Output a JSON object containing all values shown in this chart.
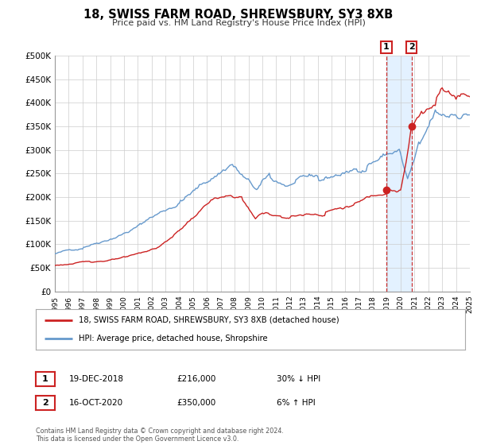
{
  "title": "18, SWISS FARM ROAD, SHREWSBURY, SY3 8XB",
  "subtitle": "Price paid vs. HM Land Registry's House Price Index (HPI)",
  "red_label": "18, SWISS FARM ROAD, SHREWSBURY, SY3 8XB (detached house)",
  "blue_label": "HPI: Average price, detached house, Shropshire",
  "marker1_date": 2018.96,
  "marker1_value": 216000,
  "marker1_label": "1",
  "marker1_text": "19-DEC-2018",
  "marker1_price": "£216,000",
  "marker1_hpi": "30% ↓ HPI",
  "marker2_date": 2020.79,
  "marker2_value": 350000,
  "marker2_label": "2",
  "marker2_text": "16-OCT-2020",
  "marker2_price": "£350,000",
  "marker2_hpi": "6% ↑ HPI",
  "copyright": "Contains HM Land Registry data © Crown copyright and database right 2024.\nThis data is licensed under the Open Government Licence v3.0.",
  "xlim": [
    1995,
    2025
  ],
  "ylim": [
    0,
    500000
  ],
  "yticks": [
    0,
    50000,
    100000,
    150000,
    200000,
    250000,
    300000,
    350000,
    400000,
    450000,
    500000
  ],
  "ytick_labels": [
    "£0",
    "£50K",
    "£100K",
    "£150K",
    "£200K",
    "£250K",
    "£300K",
    "£350K",
    "£400K",
    "£450K",
    "£500K"
  ],
  "red_color": "#cc2222",
  "blue_color": "#6699cc",
  "bg_color": "#ffffff",
  "grid_color": "#cccccc",
  "shade_color": "#ddeeff",
  "vline_color": "#cc3333"
}
